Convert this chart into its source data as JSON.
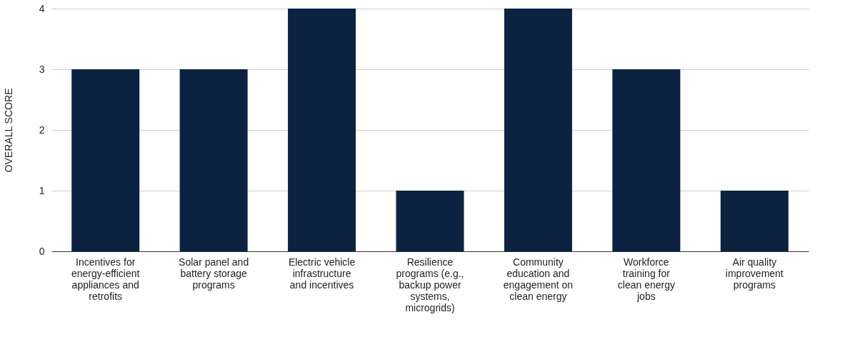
{
  "chart_data": {
    "type": "bar",
    "ylabel": "OVERALL SCORE",
    "categories": [
      "Incentives for energy-efficient appliances and retrofits",
      "Solar panel and battery storage programs",
      "Electric vehicle infrastructure and incentives",
      "Resilience programs (e.g., backup power systems, microgrids)",
      "Community education and engagement on clean energy",
      "Workforce training for clean energy jobs",
      "Air quality improvement programs"
    ],
    "values": [
      3,
      3,
      4,
      1,
      4,
      3,
      1
    ],
    "color": "#0b2240",
    "ylim": [
      0,
      4
    ],
    "yticks": [
      0,
      1,
      2,
      3,
      4
    ],
    "grid": "y"
  }
}
